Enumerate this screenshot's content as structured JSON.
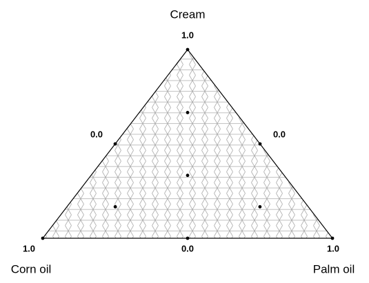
{
  "chart_data": {
    "type": "ternary",
    "components": [
      "Cream",
      "Corn oil",
      "Palm oil"
    ],
    "vertex_labels": [
      "1.0",
      "1.0",
      "1.0"
    ],
    "edge_labels": [
      "0.0",
      "0.0",
      "0.0"
    ],
    "points": [
      [
        1,
        0,
        0
      ],
      [
        0,
        1,
        0
      ],
      [
        0,
        0,
        1
      ],
      [
        0.5,
        0.5,
        0
      ],
      [
        0.5,
        0,
        0.5
      ],
      [
        0,
        0.5,
        0.5
      ],
      [
        0.333,
        0.333,
        0.333
      ],
      [
        0.667,
        0.167,
        0.167
      ],
      [
        0.167,
        0.667,
        0.167
      ],
      [
        0.167,
        0.167,
        0.667
      ]
    ],
    "color": "#000000"
  }
}
